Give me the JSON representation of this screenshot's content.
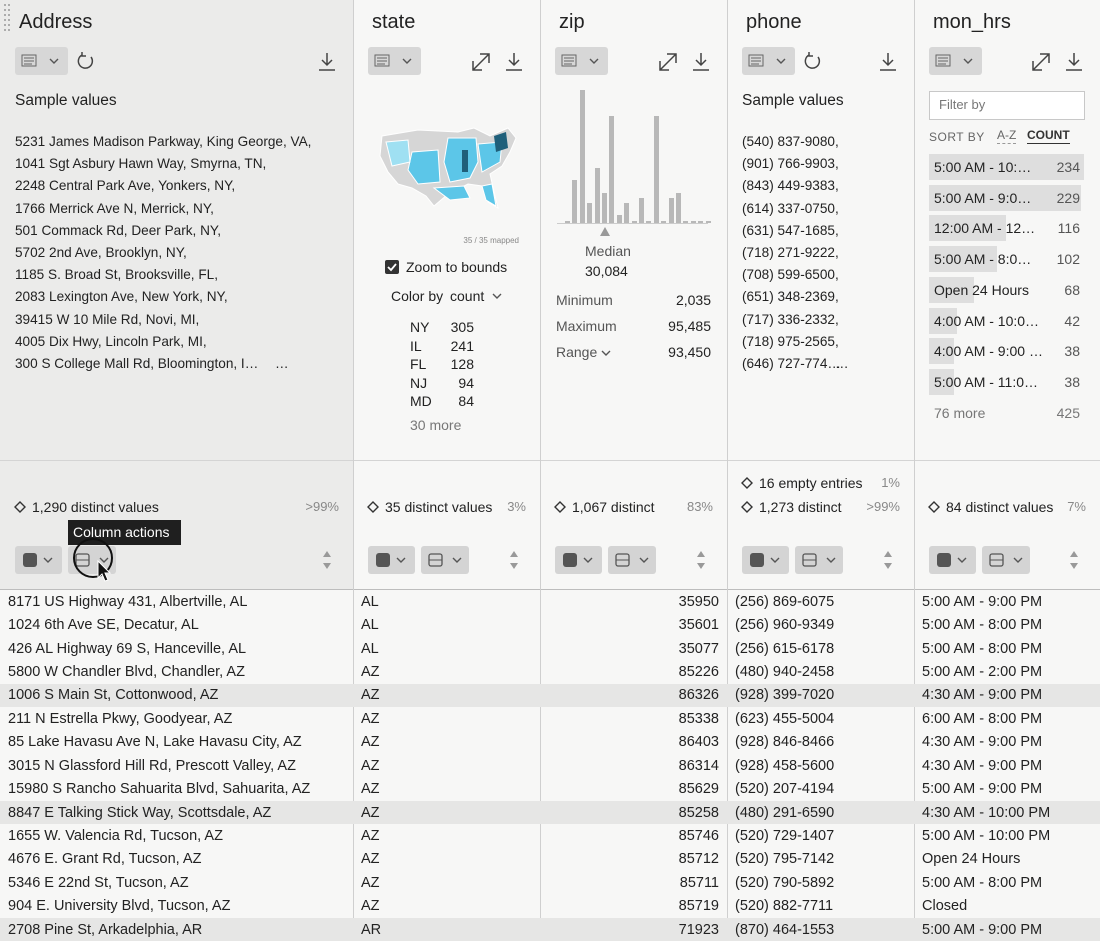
{
  "columns": [
    {
      "name": "Address",
      "summary_title": "Sample values",
      "samples": [
        "5231 James Madison Parkway, King George, VA,",
        "1041 Sgt Asbury Hawn Way, Smyrna, TN,",
        "2248 Central Park Ave, Yonkers, NY,",
        "1766 Merrick Ave N, Merrick, NY,",
        "501 Commack Rd, Deer Park, NY,",
        "5702 2nd Ave, Brooklyn, NY,",
        "1185 S. Broad St, Brooksville, FL,",
        "2083 Lexington Ave, New York, NY,",
        "39415 W 10 Mile Rd, Novi, MI,",
        "4005 Dix Hwy, Lincoln Park, MI,",
        "300 S College Mall Rd, Bloomington, I…"
      ],
      "samples_more": "…",
      "stats": [
        {
          "text": "1,290 distinct values",
          "pct": ">99%"
        }
      ]
    },
    {
      "name": "state",
      "map_caption": "35 / 35 mapped",
      "zoom_label": "Zoom to bounds",
      "color_by_label": "Color by",
      "color_by_value": "count",
      "top_values": [
        {
          "label": "NY",
          "count": 305
        },
        {
          "label": "IL",
          "count": 241
        },
        {
          "label": "FL",
          "count": 128
        },
        {
          "label": "NJ",
          "count": 94
        },
        {
          "label": "MD",
          "count": 84
        }
      ],
      "more": "30 more",
      "stats": [
        {
          "text": "35 distinct values",
          "pct": "3%"
        }
      ]
    },
    {
      "name": "zip",
      "histogram_counts": [
        2,
        43,
        133,
        20,
        55,
        30,
        107,
        8,
        20,
        2,
        25,
        2,
        107,
        2,
        25,
        30,
        2,
        2,
        2,
        2
      ],
      "median_label": "Median",
      "median": "30,084",
      "summary": [
        {
          "label": "Minimum",
          "value": "2,035"
        },
        {
          "label": "Maximum",
          "value": "95,485"
        },
        {
          "label": "Range",
          "value": "93,450"
        }
      ],
      "stats": [
        {
          "text": "1,067 distinct",
          "pct": "83%"
        }
      ]
    },
    {
      "name": "phone",
      "summary_title": "Sample values",
      "samples": [
        "(540) 837-9080,",
        "(901) 766-9903,",
        "(843) 449-9383,",
        "(614) 337-0750,",
        "(631) 547-1685,",
        "(718) 271-9222,",
        "(708) 599-6500,",
        "(651) 348-2369,",
        "(717) 336-2332,",
        "(718) 975-2565,",
        "(646) 727-774…"
      ],
      "samples_more": "…",
      "stats": [
        {
          "text": "16 empty entries",
          "pct": "1%"
        },
        {
          "text": "1,273 distinct",
          "pct": ">99%"
        }
      ]
    },
    {
      "name": "mon_hrs",
      "filter_placeholder": "Filter by",
      "sort_label": "SORT BY",
      "sort_options": [
        "A-Z",
        "COUNT"
      ],
      "top_values": [
        {
          "label": "5:00 AM - 10:…",
          "count": 234
        },
        {
          "label": "5:00 AM - 9:0…",
          "count": 229
        },
        {
          "label": "12:00 AM - 12…",
          "count": 116
        },
        {
          "label": "5:00 AM - 8:0…",
          "count": 102
        },
        {
          "label": "Open 24 Hours",
          "count": 68
        },
        {
          "label": "4:00 AM - 10:0…",
          "count": 42
        },
        {
          "label": "4:00 AM - 9:00 …",
          "count": 38
        },
        {
          "label": "5:00 AM - 11:0…",
          "count": 38
        }
      ],
      "more": "76 more",
      "more_count": 425,
      "stats": [
        {
          "text": "84 distinct values",
          "pct": "7%"
        }
      ]
    }
  ],
  "tooltip": "Column actions",
  "rows": [
    [
      "8171 US Highway 431, Albertville, AL",
      "AL",
      35950,
      "(256) 869-6075",
      "5:00 AM - 9:00 PM"
    ],
    [
      "1024 6th Ave SE, Decatur, AL",
      "AL",
      35601,
      "(256) 960-9349",
      "5:00 AM - 8:00 PM"
    ],
    [
      "426 AL Highway 69 S, Hanceville, AL",
      "AL",
      35077,
      "(256) 615-6178",
      "5:00 AM - 8:00 PM"
    ],
    [
      "5800 W Chandler Blvd, Chandler, AZ",
      "AZ",
      85226,
      "(480) 940-2458",
      "5:00 AM - 2:00 PM"
    ],
    [
      "1006 S Main St, Cottonwood, AZ",
      "AZ",
      86326,
      "(928) 399-7020",
      "4:30 AM - 9:00 PM"
    ],
    [
      "211 N Estrella Pkwy, Goodyear, AZ",
      "AZ",
      85338,
      "(623) 455-5004",
      "6:00 AM - 8:00 PM"
    ],
    [
      "85 Lake Havasu Ave N, Lake Havasu City, AZ",
      "AZ",
      86403,
      "(928) 846-8466",
      "4:30 AM - 9:00 PM"
    ],
    [
      "3015 N Glassford Hill Rd, Prescott Valley, AZ",
      "AZ",
      86314,
      "(928) 458-5600",
      "4:30 AM - 9:00 PM"
    ],
    [
      "15980 S Rancho Sahuarita Blvd, Sahuarita, AZ",
      "AZ",
      85629,
      "(520) 207-4194",
      "5:00 AM - 9:00 PM"
    ],
    [
      "8847 E Talking Stick Way, Scottsdale, AZ",
      "AZ",
      85258,
      "(480) 291-6590",
      "4:30 AM - 10:00 PM"
    ],
    [
      "1655 W. Valencia Rd, Tucson, AZ",
      "AZ",
      85746,
      "(520) 729-1407",
      "5:00 AM - 10:00 PM"
    ],
    [
      "4676 E. Grant Rd, Tucson, AZ",
      "AZ",
      85712,
      "(520) 795-7142",
      "Open 24 Hours"
    ],
    [
      "5346 E 22nd St, Tucson, AZ",
      "AZ",
      85711,
      "(520) 790-5892",
      "5:00 AM - 8:00 PM"
    ],
    [
      "904 E. University Blvd, Tucson, AZ",
      "AZ",
      85719,
      "(520) 882-7711",
      "Closed"
    ],
    [
      "2708 Pine St, Arkadelphia, AR",
      "AR",
      71923,
      "(870) 464-1553",
      "5:00 AM - 9:00 PM"
    ]
  ]
}
